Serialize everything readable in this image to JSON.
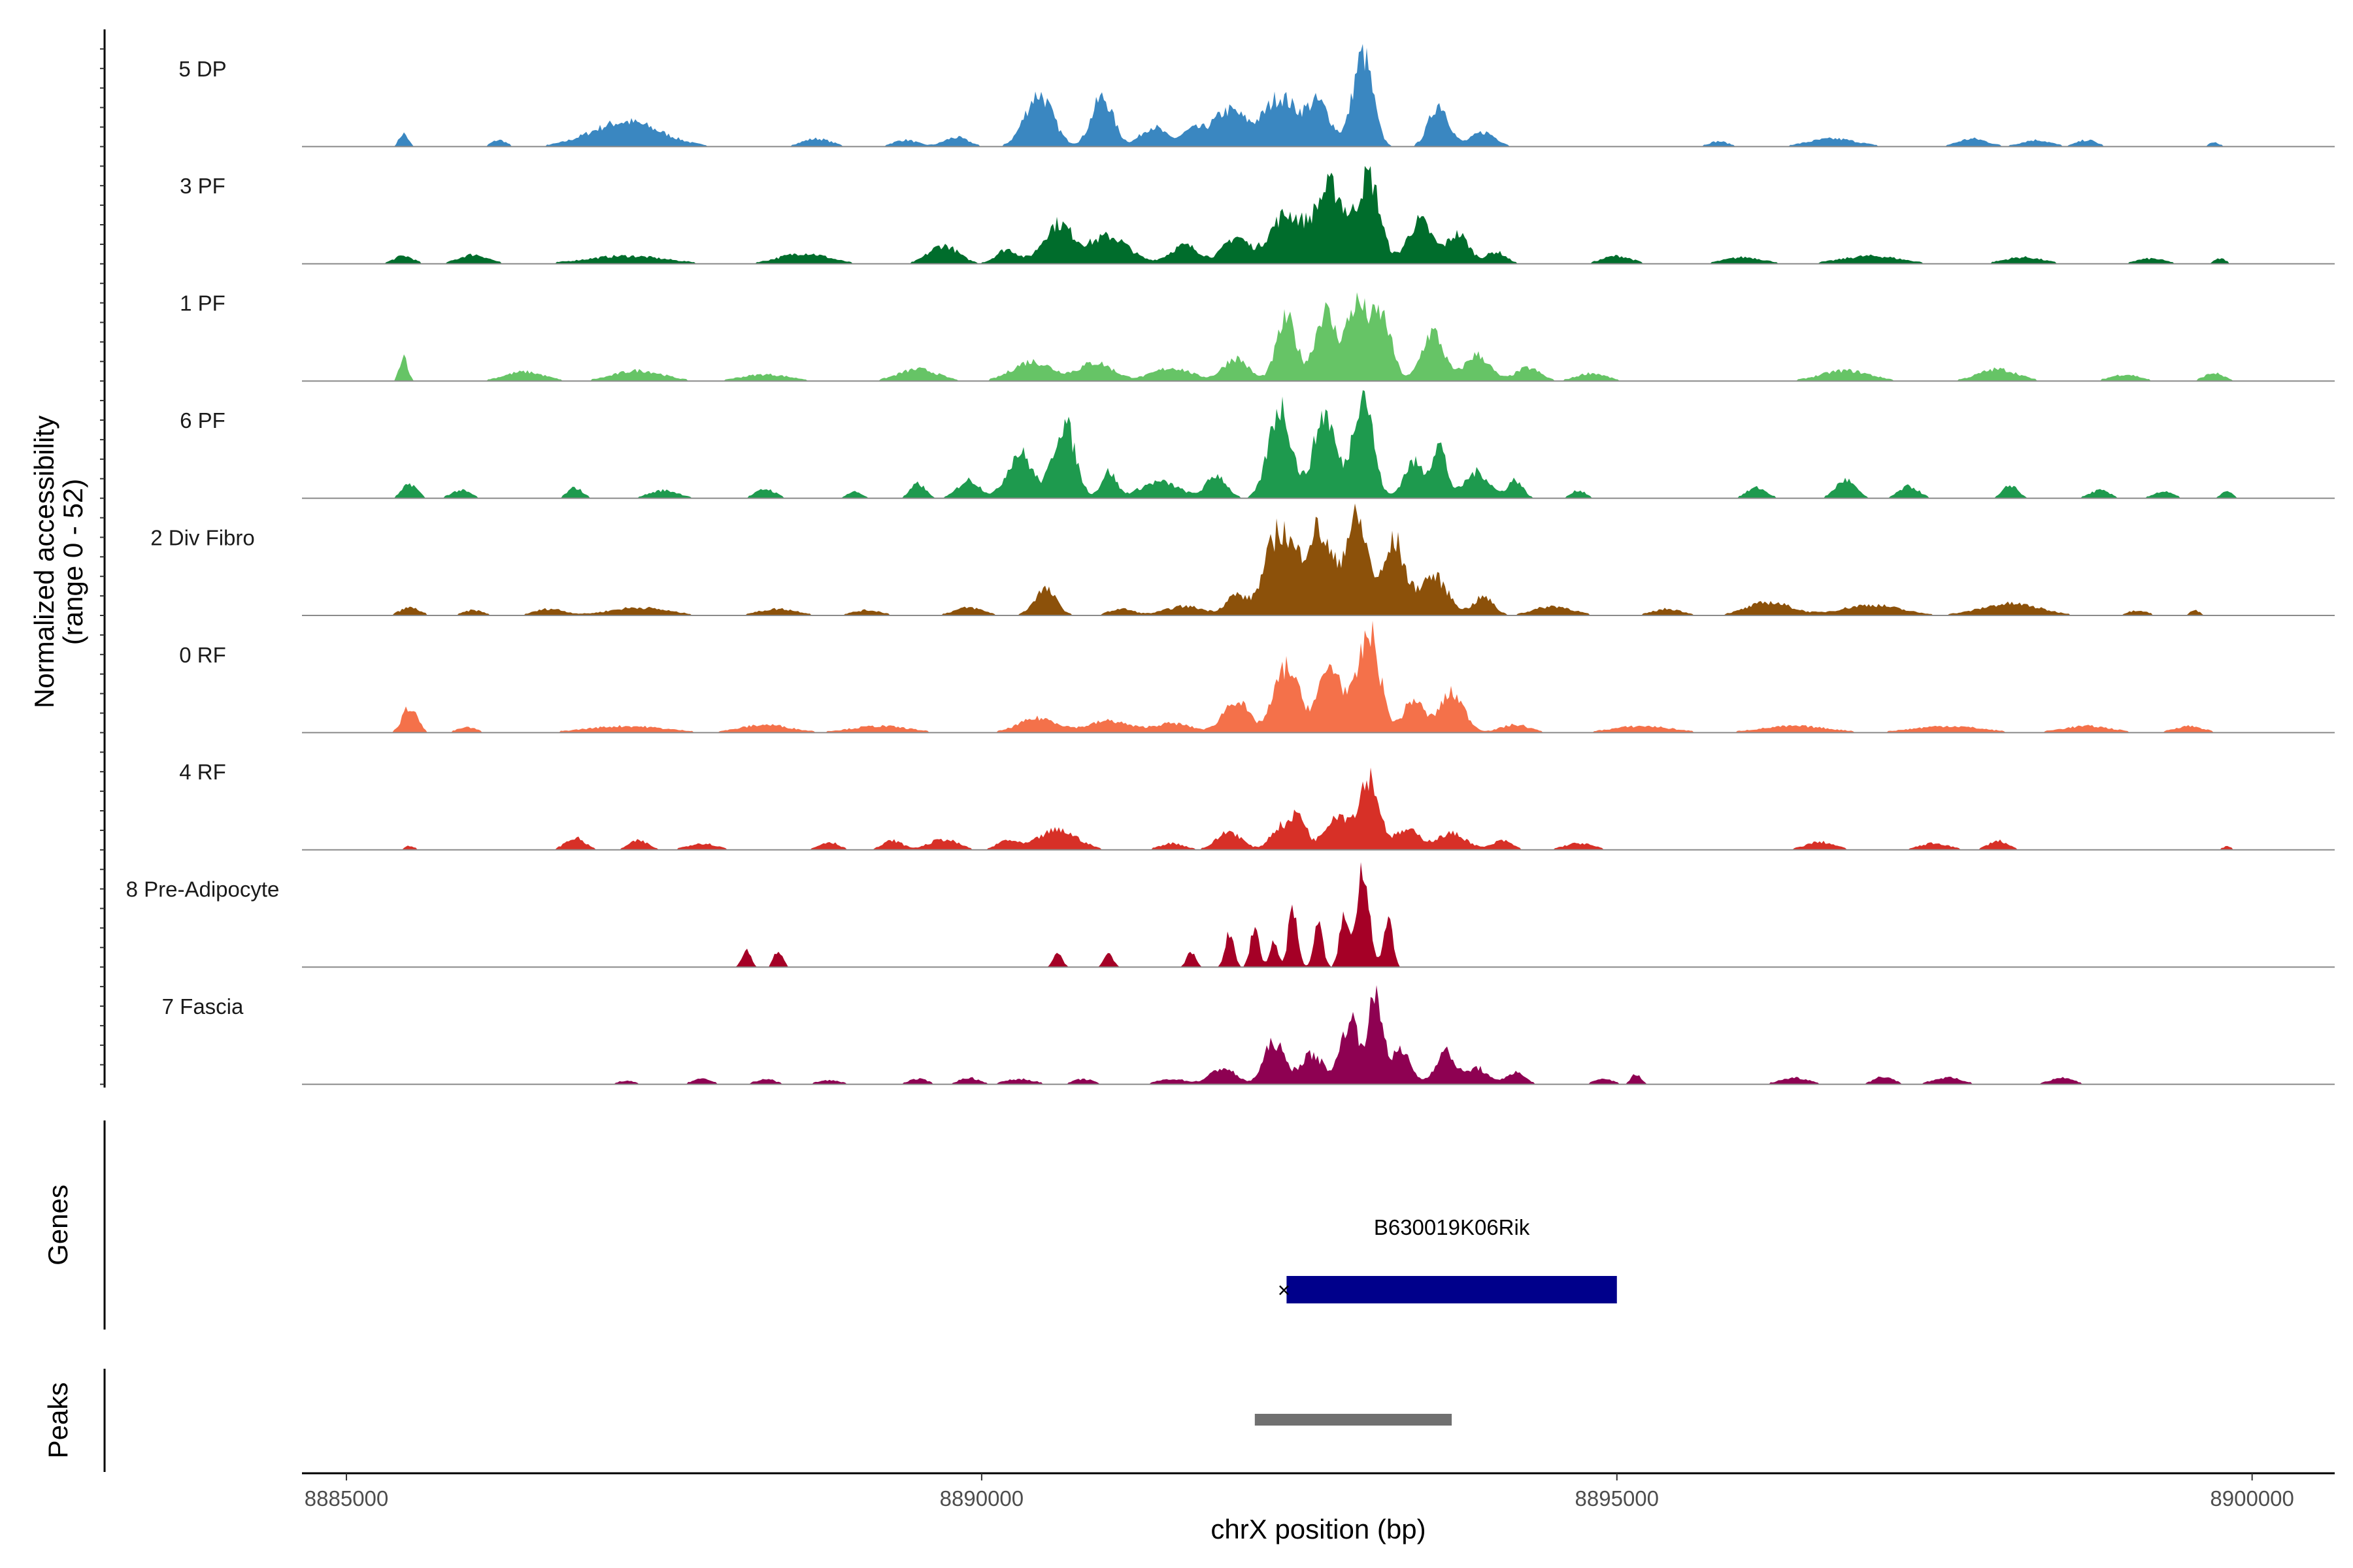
{
  "chart_data": {
    "type": "area",
    "chromosome": "chrX",
    "xlabel": "chrX position (bp)",
    "ylabel": [
      "Normalized accessibility",
      "(range 0 - 52)"
    ],
    "y_range": [
      0,
      52
    ],
    "xlim": [
      8884650,
      8900650
    ],
    "x_ticks": [
      8885000,
      8890000,
      8895000,
      8900000
    ],
    "x_tick_labels": [
      "8885000",
      "8890000",
      "8895000",
      "8900000"
    ],
    "tracks": [
      {
        "name": "5 DP",
        "color": "#3a87c1",
        "peaks": [
          [
            8885450,
            20,
            90
          ],
          [
            8886200,
            10,
            150
          ],
          [
            8887200,
            38,
            700
          ],
          [
            8888700,
            12,
            300
          ],
          [
            8889400,
            10,
            250
          ],
          [
            8889800,
            14,
            250
          ],
          [
            8890450,
            80,
            280
          ],
          [
            8890950,
            75,
            220
          ],
          [
            8891350,
            30,
            250
          ],
          [
            8891650,
            22,
            220
          ],
          [
            8891950,
            55,
            350
          ],
          [
            8892350,
            75,
            320
          ],
          [
            8892650,
            65,
            250
          ],
          [
            8893000,
            140,
            200
          ],
          [
            8893600,
            65,
            200
          ],
          [
            8893950,
            22,
            250
          ],
          [
            8895800,
            8,
            200
          ],
          [
            8896700,
            12,
            500
          ],
          [
            8897800,
            12,
            300
          ],
          [
            8898300,
            10,
            300
          ],
          [
            8898700,
            10,
            200
          ],
          [
            8899700,
            6,
            120
          ]
        ]
      },
      {
        "name": "3 PF",
        "color": "#006d2c",
        "peaks": [
          [
            8885450,
            12,
            200
          ],
          [
            8886000,
            14,
            300
          ],
          [
            8887200,
            12,
            800
          ],
          [
            8888600,
            16,
            500
          ],
          [
            8889700,
            28,
            300
          ],
          [
            8890200,
            22,
            220
          ],
          [
            8890600,
            60,
            300
          ],
          [
            8891000,
            42,
            400
          ],
          [
            8891600,
            28,
            300
          ],
          [
            8892000,
            40,
            250
          ],
          [
            8892400,
            75,
            350
          ],
          [
            8892750,
            115,
            300
          ],
          [
            8893050,
            130,
            220
          ],
          [
            8893450,
            65,
            250
          ],
          [
            8893750,
            45,
            220
          ],
          [
            8894050,
            18,
            200
          ],
          [
            8895000,
            12,
            300
          ],
          [
            8896000,
            10,
            400
          ],
          [
            8897000,
            12,
            600
          ],
          [
            8898200,
            10,
            400
          ],
          [
            8899200,
            8,
            300
          ],
          [
            8899750,
            8,
            120
          ]
        ]
      },
      {
        "name": "1 PF",
        "color": "#66c466",
        "peaks": [
          [
            8885450,
            40,
            80
          ],
          [
            8886400,
            14,
            400
          ],
          [
            8887300,
            16,
            500
          ],
          [
            8888300,
            10,
            500
          ],
          [
            8889500,
            18,
            400
          ],
          [
            8890400,
            30,
            400
          ],
          [
            8890900,
            28,
            350
          ],
          [
            8891500,
            20,
            400
          ],
          [
            8892000,
            35,
            250
          ],
          [
            8892400,
            95,
            200
          ],
          [
            8892700,
            105,
            200
          ],
          [
            8892950,
            115,
            220
          ],
          [
            8893150,
            95,
            200
          ],
          [
            8893550,
            75,
            220
          ],
          [
            8893900,
            40,
            250
          ],
          [
            8894300,
            20,
            250
          ],
          [
            8894800,
            12,
            300
          ],
          [
            8896800,
            16,
            500
          ],
          [
            8898000,
            18,
            400
          ],
          [
            8899000,
            10,
            300
          ],
          [
            8899700,
            12,
            200
          ]
        ]
      },
      {
        "name": "6 PF",
        "color": "#1e9a4e",
        "peaks": [
          [
            8885500,
            22,
            150
          ],
          [
            8885900,
            12,
            200
          ],
          [
            8886800,
            16,
            150
          ],
          [
            8887500,
            12,
            300
          ],
          [
            8888300,
            14,
            200
          ],
          [
            8889000,
            10,
            150
          ],
          [
            8889500,
            22,
            150
          ],
          [
            8889900,
            28,
            220
          ],
          [
            8890300,
            70,
            250
          ],
          [
            8890650,
            115,
            220
          ],
          [
            8891000,
            40,
            150
          ],
          [
            8891400,
            25,
            400
          ],
          [
            8891850,
            35,
            200
          ],
          [
            8892350,
            140,
            230
          ],
          [
            8892700,
            130,
            220
          ],
          [
            8893000,
            165,
            200
          ],
          [
            8893400,
            55,
            200
          ],
          [
            8893600,
            80,
            150
          ],
          [
            8893900,
            40,
            250
          ],
          [
            8894200,
            28,
            150
          ],
          [
            8894700,
            12,
            150
          ],
          [
            8896100,
            16,
            200
          ],
          [
            8896800,
            28,
            200
          ],
          [
            8897300,
            18,
            200
          ],
          [
            8898100,
            20,
            150
          ],
          [
            8898800,
            12,
            200
          ],
          [
            8899300,
            10,
            200
          ],
          [
            8899800,
            10,
            120
          ]
        ]
      },
      {
        "name": "2 Div Fibro",
        "color": "#8c510a",
        "peaks": [
          [
            8885500,
            12,
            200
          ],
          [
            8886000,
            8,
            200
          ],
          [
            8886600,
            10,
            300
          ],
          [
            8887300,
            12,
            600
          ],
          [
            8888400,
            10,
            400
          ],
          [
            8889100,
            8,
            300
          ],
          [
            8889900,
            12,
            300
          ],
          [
            8890500,
            40,
            220
          ],
          [
            8891100,
            10,
            250
          ],
          [
            8891600,
            14,
            400
          ],
          [
            8892000,
            30,
            200
          ],
          [
            8892350,
            130,
            300
          ],
          [
            8892650,
            125,
            250
          ],
          [
            8892950,
            145,
            250
          ],
          [
            8893250,
            110,
            200
          ],
          [
            8893550,
            60,
            300
          ],
          [
            8893950,
            28,
            200
          ],
          [
            8894500,
            14,
            400
          ],
          [
            8895400,
            10,
            300
          ],
          [
            8896200,
            20,
            450
          ],
          [
            8897000,
            16,
            600
          ],
          [
            8898100,
            18,
            600
          ],
          [
            8899100,
            8,
            200
          ],
          [
            8899550,
            8,
            100
          ]
        ]
      },
      {
        "name": "0 RF",
        "color": "#f4714a",
        "peaks": [
          [
            8885500,
            40,
            150
          ],
          [
            8885950,
            8,
            200
          ],
          [
            8887200,
            10,
            800
          ],
          [
            8888300,
            12,
            500
          ],
          [
            8889200,
            10,
            600
          ],
          [
            8890450,
            22,
            400
          ],
          [
            8891000,
            18,
            400
          ],
          [
            8891500,
            14,
            400
          ],
          [
            8892000,
            50,
            250
          ],
          [
            8892400,
            100,
            250
          ],
          [
            8892750,
            100,
            250
          ],
          [
            8893050,
            150,
            220
          ],
          [
            8893400,
            50,
            200
          ],
          [
            8893700,
            60,
            250
          ],
          [
            8894200,
            12,
            300
          ],
          [
            8895200,
            10,
            600
          ],
          [
            8896400,
            10,
            700
          ],
          [
            8897600,
            10,
            700
          ],
          [
            8898700,
            10,
            500
          ],
          [
            8899500,
            10,
            300
          ]
        ]
      },
      {
        "name": "4 RF",
        "color": "#d73027",
        "peaks": [
          [
            8885500,
            6,
            100
          ],
          [
            8886800,
            18,
            200
          ],
          [
            8887300,
            14,
            200
          ],
          [
            8887800,
            10,
            300
          ],
          [
            8888800,
            12,
            200
          ],
          [
            8889300,
            14,
            200
          ],
          [
            8889700,
            16,
            300
          ],
          [
            8890200,
            14,
            200
          ],
          [
            8890600,
            30,
            400
          ],
          [
            8891500,
            10,
            250
          ],
          [
            8891950,
            28,
            250
          ],
          [
            8892350,
            35,
            200
          ],
          [
            8892500,
            50,
            150
          ],
          [
            8892800,
            55,
            250
          ],
          [
            8893050,
            110,
            200
          ],
          [
            8893350,
            30,
            250
          ],
          [
            8893700,
            25,
            300
          ],
          [
            8894100,
            14,
            200
          ],
          [
            8894700,
            10,
            300
          ],
          [
            8896600,
            12,
            300
          ],
          [
            8897500,
            10,
            300
          ],
          [
            8898000,
            14,
            200
          ],
          [
            8899800,
            5,
            100
          ]
        ]
      },
      {
        "name": "8 Pre-Adipocyte",
        "color": "#a50026",
        "peaks": [
          [
            8888150,
            25,
            90
          ],
          [
            8888400,
            25,
            90
          ],
          [
            8890600,
            22,
            90
          ],
          [
            8891000,
            22,
            90
          ],
          [
            8891650,
            22,
            90
          ],
          [
            8891950,
            50,
            90
          ],
          [
            8892150,
            60,
            90
          ],
          [
            8892300,
            40,
            80
          ],
          [
            8892450,
            95,
            90
          ],
          [
            8892650,
            65,
            90
          ],
          [
            8892850,
            75,
            90
          ],
          [
            8893000,
            155,
            130
          ],
          [
            8893200,
            70,
            90
          ]
        ]
      },
      {
        "name": "7 Fascia",
        "color": "#8e0152",
        "peaks": [
          [
            8887200,
            5,
            200
          ],
          [
            8887800,
            8,
            200
          ],
          [
            8888300,
            8,
            200
          ],
          [
            8888800,
            6,
            250
          ],
          [
            8889500,
            8,
            200
          ],
          [
            8889900,
            10,
            200
          ],
          [
            8890300,
            8,
            300
          ],
          [
            8890800,
            8,
            200
          ],
          [
            8891500,
            8,
            300
          ],
          [
            8891900,
            25,
            250
          ],
          [
            8892300,
            65,
            200
          ],
          [
            8892600,
            45,
            250
          ],
          [
            8892900,
            100,
            180
          ],
          [
            8893100,
            130,
            150
          ],
          [
            8893300,
            50,
            200
          ],
          [
            8893650,
            50,
            200
          ],
          [
            8893900,
            25,
            200
          ],
          [
            8894200,
            18,
            200
          ],
          [
            8894900,
            8,
            200
          ],
          [
            8895150,
            15,
            100
          ],
          [
            8896400,
            10,
            300
          ],
          [
            8897100,
            12,
            200
          ],
          [
            8897600,
            10,
            300
          ],
          [
            8898500,
            10,
            250
          ]
        ]
      }
    ],
    "genes": [
      {
        "name": "B630019K06Rik",
        "start": 8892400,
        "end": 8895000,
        "strand": "-",
        "color": "#00008b"
      }
    ],
    "peaks_track": [
      {
        "start": 8892150,
        "end": 8893700,
        "color": "#707070"
      }
    ],
    "panel_labels": {
      "genes": "Genes",
      "peaks": "Peaks"
    }
  }
}
